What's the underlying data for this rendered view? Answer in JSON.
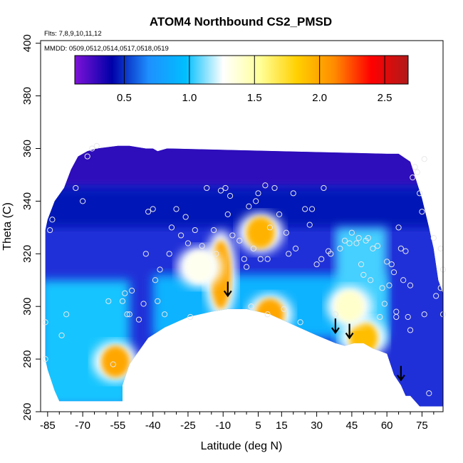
{
  "chart_data": {
    "type": "heatmap",
    "title": "ATOM4 Northbound CS2_PMSD",
    "subtitle_flights": "Flts: 7,8,9,10,11,12",
    "subtitle_dates": "MMDD: 0509,0512,0514,0517,0518,0519",
    "xlabel": "Latitude (deg N)",
    "ylabel": "Theta (C)",
    "xlim": [
      -88,
      84
    ],
    "ylim": [
      260,
      401
    ],
    "x_ticks": [
      -85,
      -70,
      -55,
      -40,
      -25,
      -10,
      5,
      15,
      30,
      45,
      60,
      75
    ],
    "y_ticks": [
      260,
      280,
      300,
      320,
      340,
      360,
      380,
      400
    ],
    "colorbar": {
      "range": [
        0.12,
        2.68
      ],
      "ticks": [
        0.5,
        1.0,
        1.5,
        2.0,
        2.5
      ],
      "tick_labels": [
        "0.5",
        "1.0",
        "1.5",
        "2.0",
        "2.5"
      ],
      "colors": [
        "#7e12d8",
        "#0000a8",
        "#1e90ff",
        "#00bfff",
        "#ffffff",
        "#ffff99",
        "#ffd000",
        "#ff8c00",
        "#ff0000",
        "#b01a1a"
      ]
    },
    "upper_boundary": [
      [
        -86,
        329
      ],
      [
        -85,
        333
      ],
      [
        -82,
        340
      ],
      [
        -78,
        345
      ],
      [
        -75,
        352
      ],
      [
        -72,
        357
      ],
      [
        -68,
        359
      ],
      [
        -64,
        360
      ],
      [
        -55,
        361
      ],
      [
        -50,
        361
      ],
      [
        -43,
        360
      ],
      [
        -40,
        360
      ],
      [
        -38,
        359
      ],
      [
        -34,
        360
      ],
      [
        -33,
        360
      ]
    ],
    "upper_boundary_right": [
      [
        60,
        358
      ],
      [
        65,
        358
      ],
      [
        70,
        355
      ],
      [
        75,
        341
      ],
      [
        78,
        330
      ],
      [
        80,
        322
      ],
      [
        81,
        316
      ],
      [
        82,
        310
      ]
    ],
    "lower_boundary": [
      [
        -86,
        280
      ],
      [
        -85,
        276
      ],
      [
        -82,
        268
      ],
      [
        -80,
        264
      ],
      [
        -60,
        264
      ],
      [
        -53,
        264
      ],
      [
        -53,
        270
      ],
      [
        -50,
        278
      ],
      [
        -42,
        288
      ],
      [
        -35,
        292
      ],
      [
        -25,
        296
      ],
      [
        -15,
        298
      ],
      [
        -8,
        299
      ],
      [
        0,
        299
      ],
      [
        10,
        297
      ],
      [
        20,
        293
      ],
      [
        30,
        289
      ],
      [
        38,
        286
      ],
      [
        42,
        285
      ],
      [
        46,
        286
      ],
      [
        50,
        286
      ],
      [
        54,
        284
      ],
      [
        57,
        283
      ],
      [
        60,
        282
      ],
      [
        63,
        274
      ],
      [
        66,
        270
      ],
      [
        68,
        266
      ],
      [
        70,
        266
      ],
      [
        72,
        264
      ],
      [
        74,
        262
      ],
      [
        82,
        262
      ]
    ],
    "hot_spots": [
      {
        "lat": -56,
        "theta": 279,
        "value": 2.0
      },
      {
        "lat": -11,
        "theta": 312,
        "value": 2.0
      },
      {
        "lat": 6,
        "theta": 328,
        "value": 1.95
      },
      {
        "lat": 10,
        "theta": 297,
        "value": 2.0
      },
      {
        "lat": 50,
        "theta": 288,
        "value": 1.9
      },
      {
        "lat": 44,
        "theta": 300,
        "value": 1.4
      },
      {
        "lat": -20,
        "theta": 315,
        "value": 1.3
      }
    ],
    "arrows": [
      {
        "lat": -8,
        "theta": 304
      },
      {
        "lat": 38,
        "theta": 290
      },
      {
        "lat": 44,
        "theta": 288
      },
      {
        "lat": 66,
        "theta": 272
      }
    ],
    "points": [
      [
        -86,
        294
      ],
      [
        -86,
        280
      ],
      [
        -84,
        329
      ],
      [
        -83,
        333
      ],
      [
        -79,
        289
      ],
      [
        -77,
        297
      ],
      [
        -73,
        345
      ],
      [
        -70,
        340
      ],
      [
        -68,
        357
      ],
      [
        -66,
        360
      ],
      [
        -64,
        361
      ],
      [
        -59,
        302
      ],
      [
        -57,
        278
      ],
      [
        -53,
        302
      ],
      [
        -52,
        305
      ],
      [
        -51,
        297
      ],
      [
        -50,
        297
      ],
      [
        -49,
        306
      ],
      [
        -46,
        295
      ],
      [
        -44,
        301
      ],
      [
        -43,
        320
      ],
      [
        -42,
        336
      ],
      [
        -40,
        337
      ],
      [
        -39,
        310
      ],
      [
        -38,
        302
      ],
      [
        -37,
        314
      ],
      [
        -35,
        297
      ],
      [
        -33,
        320
      ],
      [
        -32,
        330
      ],
      [
        -30,
        337
      ],
      [
        -28,
        327
      ],
      [
        -26,
        334
      ],
      [
        -25,
        324
      ],
      [
        -24,
        296
      ],
      [
        -22,
        329
      ],
      [
        -19,
        323
      ],
      [
        -17,
        345
      ],
      [
        -14,
        329
      ],
      [
        -13,
        320
      ],
      [
        -11,
        344
      ],
      [
        -9,
        345
      ],
      [
        -8,
        335
      ],
      [
        -7,
        342
      ],
      [
        -6,
        327
      ],
      [
        -3,
        325
      ],
      [
        -1,
        318
      ],
      [
        0,
        315
      ],
      [
        1,
        338
      ],
      [
        2,
        300
      ],
      [
        3,
        322
      ],
      [
        4,
        340
      ],
      [
        5,
        343
      ],
      [
        6,
        318
      ],
      [
        8,
        346
      ],
      [
        9,
        318
      ],
      [
        9,
        297
      ],
      [
        10,
        330
      ],
      [
        12,
        345
      ],
      [
        14,
        335
      ],
      [
        16,
        299
      ],
      [
        17,
        328
      ],
      [
        18,
        320
      ],
      [
        20,
        343
      ],
      [
        21,
        322
      ],
      [
        23,
        294
      ],
      [
        25,
        337
      ],
      [
        27,
        331
      ],
      [
        28,
        337
      ],
      [
        30,
        316
      ],
      [
        32,
        318
      ],
      [
        33,
        345
      ],
      [
        35,
        321
      ],
      [
        36,
        320
      ],
      [
        38,
        297
      ],
      [
        40,
        322
      ],
      [
        42,
        325
      ],
      [
        44,
        324
      ],
      [
        45,
        328
      ],
      [
        47,
        324
      ],
      [
        48,
        326
      ],
      [
        49,
        316
      ],
      [
        50,
        312
      ],
      [
        51,
        325
      ],
      [
        52,
        326
      ],
      [
        53,
        310
      ],
      [
        54,
        322
      ],
      [
        56,
        323
      ],
      [
        57,
        296
      ],
      [
        58,
        307
      ],
      [
        59,
        301
      ],
      [
        60,
        317
      ],
      [
        61,
        308
      ],
      [
        62,
        316
      ],
      [
        63,
        313
      ],
      [
        64,
        298
      ],
      [
        64,
        296
      ],
      [
        65,
        330
      ],
      [
        66,
        322
      ],
      [
        67,
        310
      ],
      [
        68,
        321
      ],
      [
        69,
        296
      ],
      [
        70,
        308
      ],
      [
        70,
        291
      ],
      [
        71,
        349
      ],
      [
        72,
        353
      ],
      [
        73,
        351
      ],
      [
        74,
        343
      ],
      [
        75,
        336
      ],
      [
        76,
        356
      ],
      [
        76,
        297
      ],
      [
        78,
        267
      ],
      [
        80,
        326
      ],
      [
        81,
        304
      ],
      [
        83,
        322
      ],
      [
        83,
        307
      ],
      [
        84,
        314
      ],
      [
        84,
        297
      ]
    ]
  }
}
